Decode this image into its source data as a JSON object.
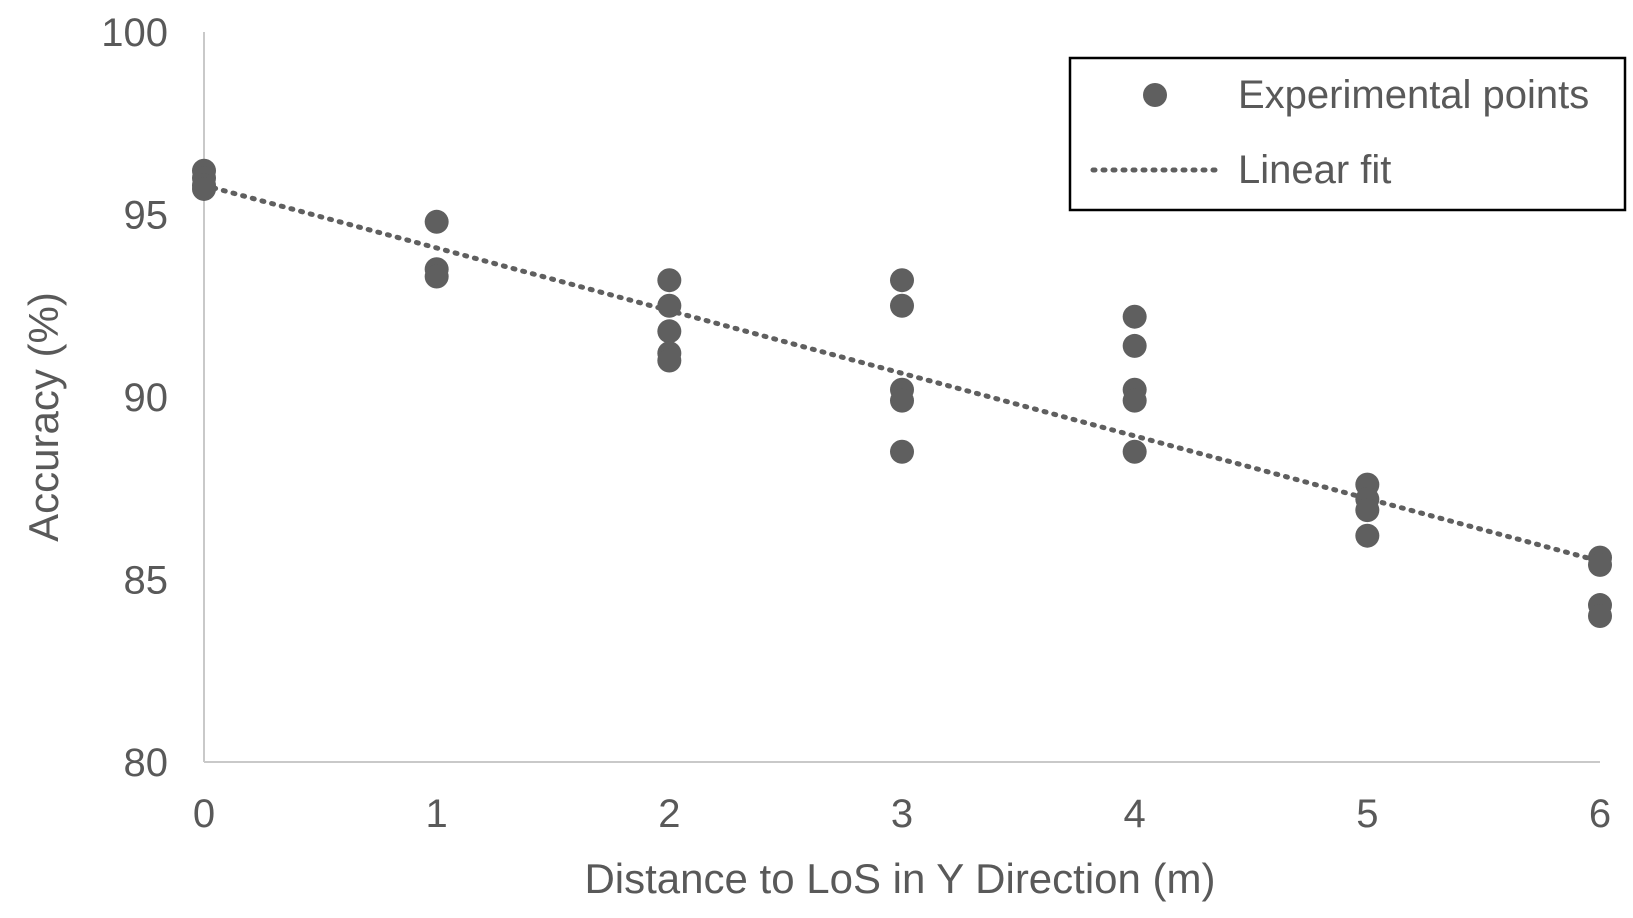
{
  "chart_data": {
    "type": "scatter",
    "title": "",
    "xlabel": "Distance to LoS in Y Direction (m)",
    "ylabel": "Accuracy (%)",
    "xlim": [
      0,
      6
    ],
    "ylim": [
      80,
      100
    ],
    "x_ticks": [
      0,
      1,
      2,
      3,
      4,
      5,
      6
    ],
    "y_ticks": [
      80,
      85,
      90,
      95,
      100
    ],
    "x_tick_labels": [
      "0",
      "1",
      "2",
      "3",
      "4",
      "5",
      "6"
    ],
    "y_tick_labels": [
      "80",
      "85",
      "90",
      "95",
      "100"
    ],
    "grid": false,
    "legend_position": "top-right",
    "series": [
      {
        "name": "Experimental points",
        "kind": "scatter",
        "color": "#5f5f5f",
        "points": [
          {
            "x": 0,
            "y": 96.2
          },
          {
            "x": 0,
            "y": 96.0
          },
          {
            "x": 0,
            "y": 95.8
          },
          {
            "x": 0,
            "y": 95.7
          },
          {
            "x": 1,
            "y": 94.8
          },
          {
            "x": 1,
            "y": 93.5
          },
          {
            "x": 1,
            "y": 93.3
          },
          {
            "x": 2,
            "y": 93.2
          },
          {
            "x": 2,
            "y": 92.5
          },
          {
            "x": 2,
            "y": 91.8
          },
          {
            "x": 2,
            "y": 91.2
          },
          {
            "x": 2,
            "y": 91.0
          },
          {
            "x": 3,
            "y": 93.2
          },
          {
            "x": 3,
            "y": 92.5
          },
          {
            "x": 3,
            "y": 90.2
          },
          {
            "x": 3,
            "y": 89.9
          },
          {
            "x": 3,
            "y": 88.5
          },
          {
            "x": 4,
            "y": 92.2
          },
          {
            "x": 4,
            "y": 91.4
          },
          {
            "x": 4,
            "y": 90.2
          },
          {
            "x": 4,
            "y": 89.9
          },
          {
            "x": 4,
            "y": 88.5
          },
          {
            "x": 5,
            "y": 87.6
          },
          {
            "x": 5,
            "y": 87.2
          },
          {
            "x": 5,
            "y": 86.9
          },
          {
            "x": 5,
            "y": 86.2
          },
          {
            "x": 6,
            "y": 85.6
          },
          {
            "x": 6,
            "y": 85.4
          },
          {
            "x": 6,
            "y": 84.3
          },
          {
            "x": 6,
            "y": 84.0
          }
        ]
      },
      {
        "name": "Linear fit",
        "kind": "line",
        "style": "dotted",
        "color": "#5f5f5f",
        "points": [
          {
            "x": 0,
            "y": 95.8
          },
          {
            "x": 6,
            "y": 85.5
          }
        ]
      }
    ]
  }
}
